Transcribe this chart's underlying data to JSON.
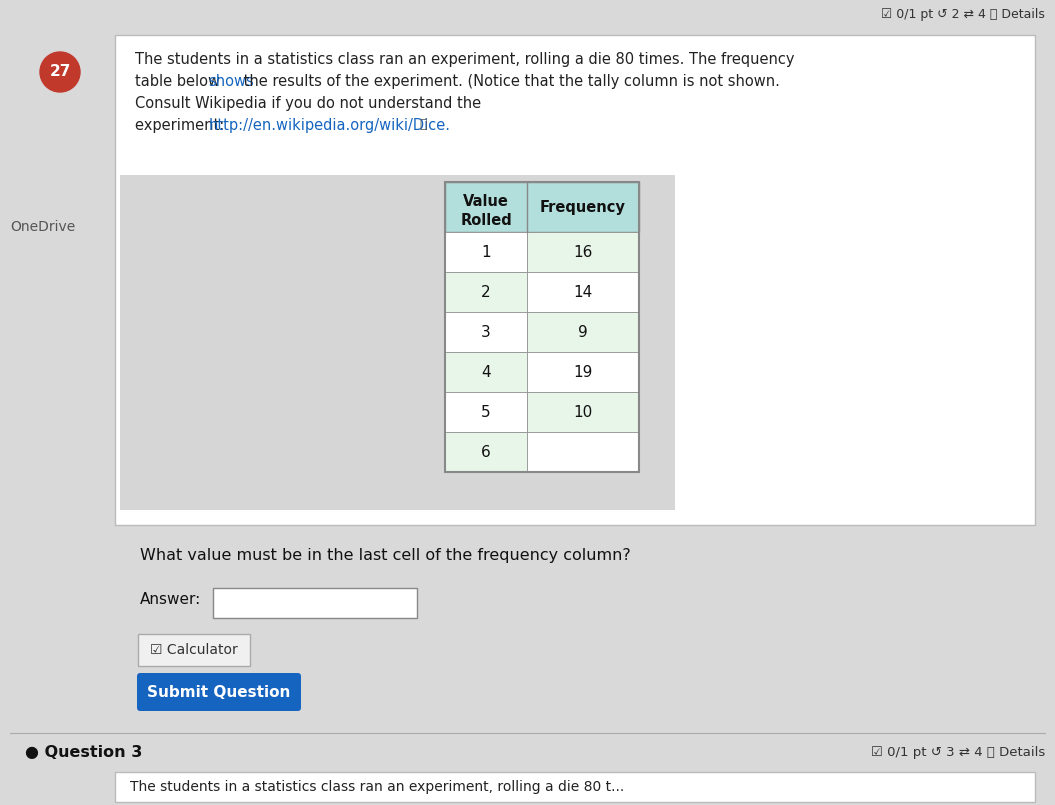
{
  "bg_color": "#d9d9d9",
  "question_num": "27",
  "question_num_bg": "#c0392b",
  "question_num_color": "#ffffff",
  "top_right_text": "☑ 0/1 pt ↺ 2 ⇄ 4 ⓘ Details",
  "left_sidebar_text": "OneDrive",
  "para_line0": "The students in a statistics class ran an experiment, rolling a die 80 times. The frequency",
  "para_line1_before": "table below ",
  "para_line1_link": "shows",
  "para_line1_after": " the results of the experiment. (Notice that the tally column is not shown.",
  "para_line2": "Consult Wikipedia if you do not understand the",
  "para_line3_before": "experiment: ",
  "para_line3_link": "http://en.wikipedia.org/wiki/Dice.",
  "para_line3_after": " ⧉",
  "table_header_col1": "Value\nRolled",
  "table_header_col2": "Frequency",
  "table_header_bg": "#b2dfdb",
  "table_row_bg_white": "#ffffff",
  "table_row_bg_green": "#e8f5e9",
  "table_values": [
    1,
    2,
    3,
    4,
    5,
    6
  ],
  "table_frequencies": [
    16,
    14,
    9,
    19,
    10,
    ""
  ],
  "table_border_color": "#888888",
  "inner_bg_color": "#c0c0c0",
  "outer_box_bg": "#ffffff",
  "outer_box_border": "#bbbbbb",
  "question_text": "What value must be in the last cell of the frequency column?",
  "answer_label": "Answer:",
  "calculator_label": "☑ Calculator",
  "submit_button_text": "Submit Question",
  "submit_button_color": "#1565c0",
  "submit_button_text_color": "#ffffff",
  "question3_text": "● Question 3",
  "question3_right_text": "☑ 0/1 pt ↺ 3 ⇄ 4 ⓘ Details",
  "bottom_text": "The students in a statistics class ran an experiment, rolling a die 80 t..."
}
